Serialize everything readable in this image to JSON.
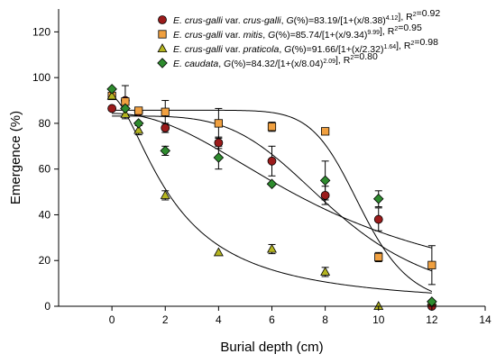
{
  "chart_data": {
    "type": "scatter",
    "xlabel": "Burial depth (cm)",
    "ylabel": "Emergence (%)",
    "xlim": [
      -2,
      14
    ],
    "ylim": [
      0,
      130
    ],
    "xticks": [
      0,
      2,
      4,
      6,
      8,
      10,
      12,
      14
    ],
    "yticks": [
      0,
      20,
      40,
      60,
      80,
      100,
      120
    ],
    "xtick_labels": [
      "0",
      "2",
      "4",
      "6",
      "8",
      "10",
      "12",
      "14"
    ],
    "ytick_labels": [
      "0",
      "20",
      "40",
      "60",
      "80",
      "100",
      "120"
    ],
    "legend_position": "top-right",
    "grid": false,
    "series": [
      {
        "name_parts": [
          {
            "text": "E. crus-galli",
            "italic": true
          },
          {
            "text": " var. "
          },
          {
            "text": "crus-galli",
            "italic": true
          },
          {
            "text": ", "
          },
          {
            "text": "G",
            "italic": true
          },
          {
            "text": "(%)=83.19/[1+(x/8.38)"
          },
          {
            "text": "4.12",
            "sup": true
          },
          {
            "text": "], R"
          },
          {
            "text": "2",
            "sup": true
          },
          {
            "text": "=0.92"
          }
        ],
        "marker": "circle",
        "color": "#9b1b1b",
        "x": [
          0,
          0.5,
          1,
          2,
          4,
          6,
          8,
          10,
          12
        ],
        "y": [
          86.5,
          90,
          85,
          78,
          71.5,
          63.5,
          48.5,
          38,
          0
        ],
        "err": [
          0,
          6.5,
          0,
          2,
          2.5,
          6.5,
          4,
          5,
          0
        ],
        "fit": {
          "a": 83.19,
          "x0": 8.38,
          "b": 4.12
        }
      },
      {
        "name_parts": [
          {
            "text": "E. crus-galli",
            "italic": true
          },
          {
            "text": " var. "
          },
          {
            "text": "mitis",
            "italic": true
          },
          {
            "text": ", "
          },
          {
            "text": "G",
            "italic": true
          },
          {
            "text": "(%)=85.74/[1+(x/9.34)"
          },
          {
            "text": "9.99",
            "sup": true
          },
          {
            "text": "], R"
          },
          {
            "text": "2",
            "sup": true
          },
          {
            "text": "=0.95"
          }
        ],
        "marker": "square",
        "color": "#f0a040",
        "x": [
          0,
          0.5,
          1,
          2,
          4,
          6,
          8,
          10,
          12
        ],
        "y": [
          92,
          89.5,
          85.5,
          85,
          80,
          78.5,
          76.5,
          21.5,
          18
        ],
        "err": [
          0,
          0,
          0,
          5,
          6.5,
          2,
          0,
          2,
          8.5
        ],
        "fit": {
          "a": 85.74,
          "x0": 9.34,
          "b": 9.99
        }
      },
      {
        "name_parts": [
          {
            "text": "E. crus-galli",
            "italic": true
          },
          {
            "text": " var. "
          },
          {
            "text": "praticola",
            "italic": true
          },
          {
            "text": ", "
          },
          {
            "text": "G",
            "italic": true
          },
          {
            "text": "(%)=91.66/[1+(x/2.32)"
          },
          {
            "text": "1.64",
            "sup": true
          },
          {
            "text": "], R"
          },
          {
            "text": "2",
            "sup": true
          },
          {
            "text": "=0.98"
          }
        ],
        "marker": "triangle",
        "color": "#b5b520",
        "x": [
          0,
          0.5,
          1,
          2,
          4,
          6,
          8,
          10,
          12
        ],
        "y": [
          92,
          84,
          77,
          48.5,
          23.5,
          25,
          15,
          0,
          2
        ],
        "err": [
          0,
          2,
          2,
          2,
          0,
          2,
          2,
          0,
          0
        ],
        "fit": {
          "a": 91.66,
          "x0": 2.32,
          "b": 1.64
        }
      },
      {
        "name_parts": [
          {
            "text": "E. caudata",
            "italic": true
          },
          {
            "text": ", "
          },
          {
            "text": "G",
            "italic": true
          },
          {
            "text": "(%)=84.32/[1+(x/8.04)"
          },
          {
            "text": "2.09",
            "sup": true
          },
          {
            "text": "], R"
          },
          {
            "text": "2",
            "sup": true
          },
          {
            "text": "=0.80"
          }
        ],
        "marker": "diamond",
        "color": "#2e8b2e",
        "x": [
          0,
          0.5,
          1,
          2,
          4,
          6,
          8,
          10,
          12
        ],
        "y": [
          95,
          86.5,
          80,
          68,
          65,
          53.5,
          55,
          47,
          2
        ],
        "err": [
          0,
          0,
          0,
          2,
          5,
          0,
          8.5,
          3.5,
          0
        ],
        "fit": {
          "a": 84.32,
          "x0": 8.04,
          "b": 2.09
        }
      }
    ]
  }
}
